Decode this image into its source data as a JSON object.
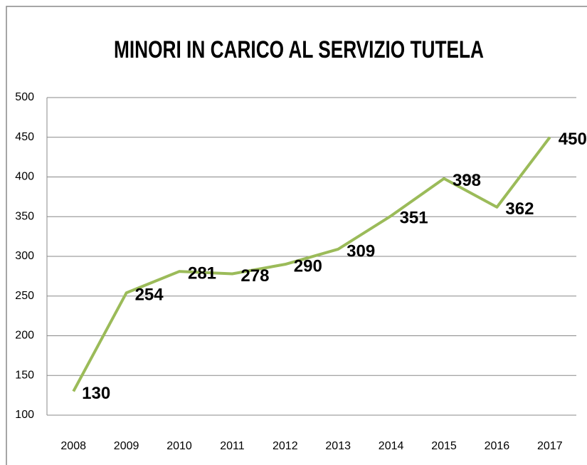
{
  "chart_data": {
    "type": "line",
    "title": "MINORI IN CARICO AL SERVIZIO TUTELA",
    "categories": [
      "2008",
      "2009",
      "2010",
      "2011",
      "2012",
      "2013",
      "2014",
      "2015",
      "2016",
      "2017"
    ],
    "values": [
      130,
      254,
      281,
      278,
      290,
      309,
      351,
      398,
      362,
      450
    ],
    "color": "#9bbb59",
    "ylim": [
      100,
      500
    ],
    "yticks": [
      100,
      150,
      200,
      250,
      300,
      350,
      400,
      450,
      500
    ],
    "grid": true
  }
}
